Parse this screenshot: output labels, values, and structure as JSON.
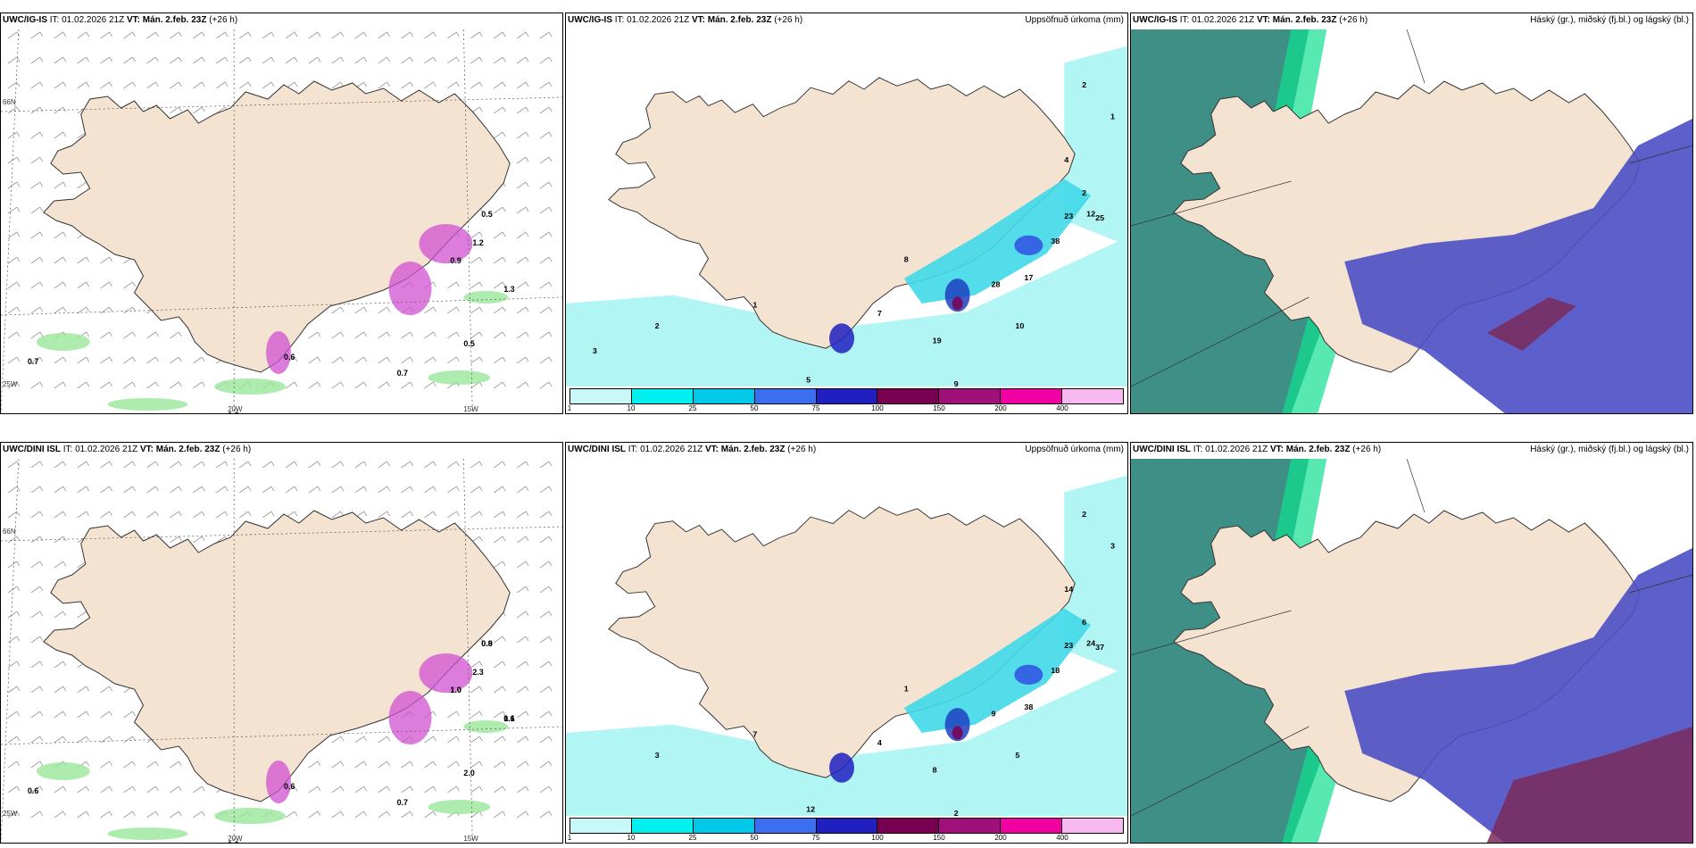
{
  "rows": [
    {
      "model": "UWC/IG-IS",
      "panels": [
        {
          "it": "IT: 01.02.2026 21Z",
          "vt_label": "VT:",
          "vt": "Mán. 2.feb. 23Z",
          "lead": "(+26 h)",
          "right": "",
          "values": [
            "0.5",
            "0.9",
            "1.3",
            "0.5",
            "0.6",
            "1.2",
            "0.7",
            "0.7",
            "1.0"
          ]
        },
        {
          "it": "IT: 01.02.2026 21Z",
          "vt_label": "VT:",
          "vt": "Mán. 2.feb. 23Z",
          "lead": "(+26 h)",
          "right": "Uppsöfnuð úrkoma (mm)",
          "values": [
            "2",
            "1",
            "2",
            "4",
            "12",
            "23",
            "25",
            "38",
            "17",
            "10",
            "19",
            "28",
            "7",
            "8",
            "9",
            "5",
            "1",
            "2",
            "3"
          ]
        },
        {
          "it": "IT: 01.02.2026 21Z",
          "vt_label": "VT:",
          "vt": "Mán. 2.feb. 23Z",
          "lead": "(+26 h)",
          "right": "Háský (gr.), miðský (fj.bl.) og lágský (bl.)"
        }
      ]
    },
    {
      "model": "UWC/DINI ISL",
      "panels": [
        {
          "it": "IT: 01.02.2026 21Z",
          "vt_label": "VT:",
          "vt": "Mán. 2.feb. 23Z",
          "lead": "(+26 h)",
          "right": "",
          "values": [
            "0.9",
            "1.0",
            "0.6",
            "2.0",
            "0.6",
            "2.3",
            "0.6",
            "0.7",
            "1.0",
            "0.8",
            "1.0",
            "1.1"
          ]
        },
        {
          "it": "IT: 01.02.2026 21Z",
          "vt_label": "VT:",
          "vt": "Mán. 2.feb. 23Z",
          "lead": "(+26 h)",
          "right": "Uppsöfnuð úrkoma (mm)",
          "values": [
            "2",
            "3",
            "6",
            "14",
            "24",
            "23",
            "37",
            "18",
            "38",
            "5",
            "8",
            "9",
            "4",
            "1",
            "2",
            "12",
            "7",
            "3"
          ]
        },
        {
          "it": "IT: 01.02.2026 21Z",
          "vt_label": "VT:",
          "vt": "Mán. 2.feb. 23Z",
          "lead": "(+26 h)",
          "right": "Háský (gr.), miðský (fj.bl.) og lágský (bl.)"
        }
      ]
    }
  ],
  "axes": {
    "lat66": "66N",
    "lat64": "64N",
    "lon20": "20W",
    "lon15": "15W",
    "lon25": "25W"
  },
  "colorbar": {
    "ticks": [
      "1",
      "10",
      "25",
      "50",
      "75",
      "100",
      "150",
      "200",
      "400"
    ],
    "colors": [
      "#c8f8f8",
      "#00f0f0",
      "#00c8e8",
      "#3c6ef0",
      "#2020c0",
      "#780050",
      "#a0107a",
      "#f000a0",
      "#f8b8f0"
    ]
  },
  "colors": {
    "land": "#f5e3d1",
    "sea_precip": "#b2f5f5",
    "cloud_low": "#4b4fc4",
    "cloud_mid": "#3e8f86",
    "cloud_high": "#10e090",
    "wind_green": "#9ae69a"
  }
}
